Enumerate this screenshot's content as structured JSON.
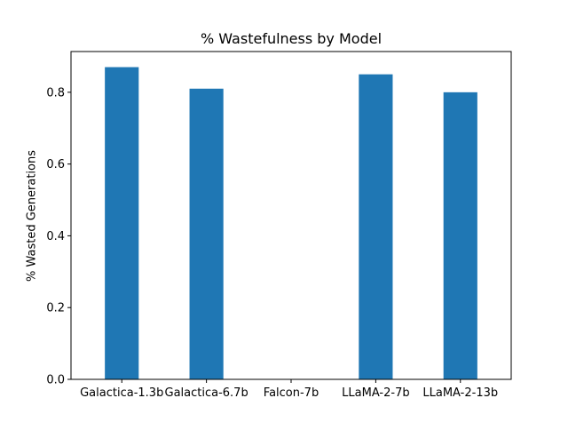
{
  "chart_data": {
    "type": "bar",
    "title": "% Wastefulness by Model",
    "xlabel": "",
    "ylabel": "% Wasted Generations",
    "categories": [
      "Galactica-1.3b",
      "Galactica-6.7b",
      "Falcon-7b",
      "LLaMA-2-7b",
      "LLaMA-2-13b"
    ],
    "values": [
      0.87,
      0.81,
      0.0,
      0.85,
      0.8
    ],
    "ylim": [
      0,
      0.9135
    ],
    "yticks": [
      0.0,
      0.2,
      0.4,
      0.6,
      0.8
    ],
    "ytick_labels": [
      "0.0",
      "0.2",
      "0.4",
      "0.6",
      "0.8"
    ],
    "grid": false,
    "legend": "none",
    "bar_color": "#1f77b4"
  }
}
